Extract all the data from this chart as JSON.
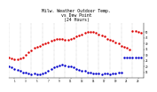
{
  "title": "Milw. Weather Outdoor Temp.\nvs Dew Point\n(24 Hours)",
  "title_fontsize": 3.5,
  "background_color": "#ffffff",
  "plot_bg_color": "#ffffff",
  "grid_color": "#aaaaaa",
  "temp_color": "#dd0000",
  "dew_color": "#0000cc",
  "ylim": [
    10,
    58
  ],
  "xlim": [
    0,
    24
  ],
  "yticks": [
    15,
    20,
    25,
    30,
    35,
    40,
    45,
    50
  ],
  "xtick_vals": [
    1,
    3,
    5,
    7,
    9,
    11,
    13,
    15,
    17,
    19,
    21,
    23
  ],
  "temp_x": [
    0.0,
    0.5,
    1.0,
    1.5,
    2.0,
    2.5,
    3.0,
    3.5,
    4.0,
    4.5,
    5.0,
    5.5,
    6.0,
    6.5,
    7.0,
    7.5,
    8.0,
    8.5,
    9.0,
    9.5,
    10.0,
    10.5,
    11.0,
    11.5,
    12.0,
    12.5,
    13.0,
    13.5,
    14.0,
    14.5,
    15.0,
    15.5,
    16.0,
    16.5,
    17.0,
    17.5,
    18.0,
    18.5,
    19.0,
    19.5,
    20.0,
    20.5,
    21.0,
    21.5,
    22.0,
    22.5,
    23.0,
    23.5
  ],
  "temp_y": [
    28,
    27,
    26,
    26,
    27,
    28,
    30,
    32,
    34,
    36,
    37,
    38,
    39,
    40,
    41,
    42,
    43,
    44,
    44,
    44,
    43,
    43,
    44,
    45,
    46,
    47,
    48,
    49,
    50,
    50,
    50,
    49,
    48,
    47,
    46,
    44,
    43,
    42,
    41,
    40,
    38,
    37,
    36,
    35,
    51,
    51,
    50,
    49
  ],
  "dew_x": [
    0.0,
    0.5,
    1.0,
    1.5,
    2.0,
    2.5,
    3.0,
    3.5,
    4.0,
    4.5,
    5.0,
    5.5,
    6.0,
    6.5,
    7.0,
    7.5,
    8.0,
    8.5,
    9.0,
    9.5,
    10.0,
    10.5,
    11.0,
    11.5,
    12.0,
    12.5,
    13.0,
    13.5,
    14.0,
    14.5,
    15.0,
    15.5,
    16.0,
    16.5,
    17.0,
    17.5,
    18.0,
    18.5,
    19.0,
    19.5,
    20.0,
    20.5,
    21.0,
    21.5,
    22.0,
    22.5,
    23.0,
    23.5
  ],
  "dew_y": [
    20,
    19,
    18,
    17,
    16,
    15,
    15,
    14,
    13,
    14,
    13,
    13,
    14,
    15,
    16,
    18,
    19,
    20,
    21,
    22,
    21,
    20,
    20,
    19,
    18,
    17,
    16,
    16,
    15,
    15,
    14,
    14,
    14,
    13,
    14,
    14,
    13,
    14,
    14,
    15,
    15,
    28,
    28,
    28,
    28,
    28,
    28,
    28
  ],
  "marker_size": 1.5,
  "grid_linewidth": 0.3,
  "vgrid_x": [
    0,
    2,
    4,
    6,
    8,
    10,
    12,
    14,
    16,
    18,
    20,
    22,
    24
  ]
}
